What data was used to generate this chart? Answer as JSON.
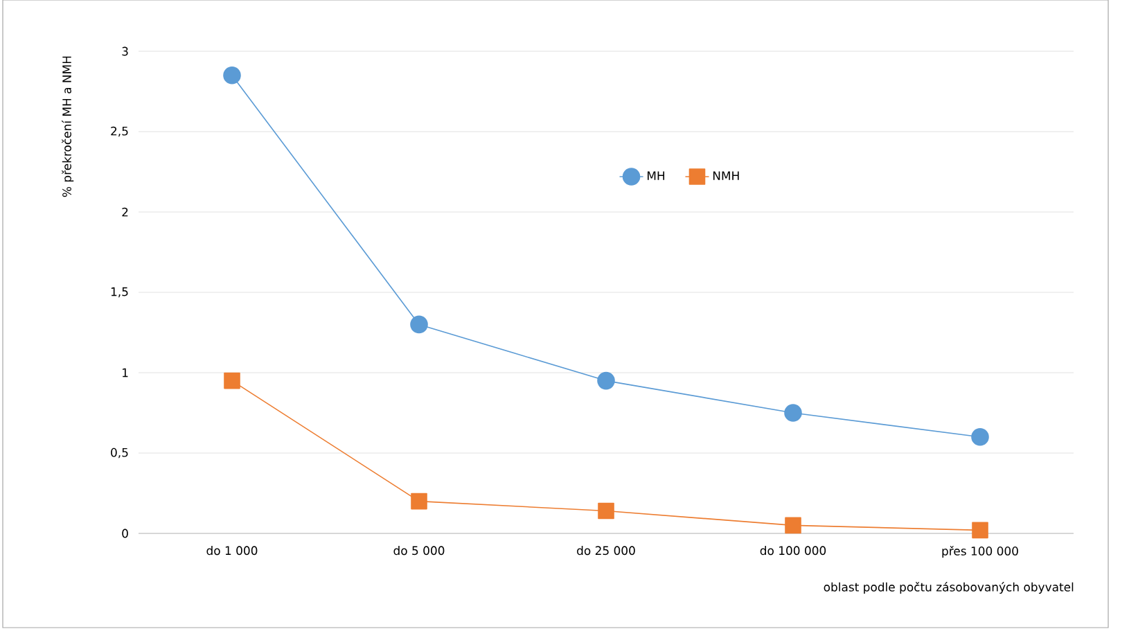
{
  "chart_data": {
    "type": "line",
    "xlabel": "oblast podle počtu zásobovaných obyvatel",
    "ylabel": "% překročení MH a NMH",
    "categories": [
      "do 1 000",
      "do 5 000",
      "do 25 000",
      "do 100 000",
      "přes 100 000"
    ],
    "series": [
      {
        "name": "MH",
        "color": "#5b9bd5",
        "marker": "circle",
        "values": [
          2.85,
          1.3,
          0.95,
          0.75,
          0.6
        ]
      },
      {
        "name": "NMH",
        "color": "#ed7d31",
        "marker": "square",
        "values": [
          0.95,
          0.2,
          0.14,
          0.05,
          0.02
        ]
      }
    ],
    "ylim": [
      0,
      3
    ],
    "yticks": [
      0,
      {
        "value": 0.5,
        "label": "0,5"
      },
      1,
      {
        "value": 1.5,
        "label": "1,5"
      },
      2,
      {
        "value": 2.5,
        "label": "2,5"
      },
      3
    ],
    "grid": "y",
    "legend": "top"
  }
}
